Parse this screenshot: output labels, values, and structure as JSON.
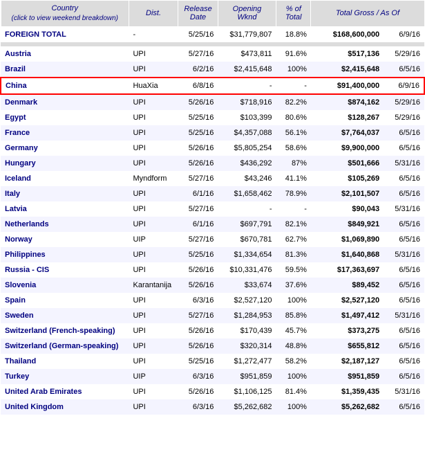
{
  "headers": {
    "country": "Country",
    "country_sub": "(click to view weekend breakdown)",
    "dist": "Dist.",
    "release_date": "Release Date",
    "opening_wknd": "Opening Wknd",
    "pct_total": "% of Total",
    "total_gross": "Total Gross",
    "slash": " / ",
    "as_of": "As Of"
  },
  "foreign_total": {
    "country": "FOREIGN TOTAL",
    "dist": "-",
    "date": "5/25/16",
    "opening": "$31,779,807",
    "pct": "18.8%",
    "gross": "$168,600,000",
    "asof": "6/9/16"
  },
  "rows": [
    {
      "country": "Austria",
      "dist": "UPI",
      "date": "5/27/16",
      "opening": "$473,811",
      "pct": "91.6%",
      "gross": "$517,136",
      "asof": "5/29/16",
      "highlight": false
    },
    {
      "country": "Brazil",
      "dist": "UPI",
      "date": "6/2/16",
      "opening": "$2,415,648",
      "pct": "100%",
      "gross": "$2,415,648",
      "asof": "6/5/16",
      "highlight": false
    },
    {
      "country": "China",
      "dist": "HuaXia",
      "date": "6/8/16",
      "opening": "-",
      "pct": "-",
      "gross": "$91,400,000",
      "asof": "6/9/16",
      "highlight": true
    },
    {
      "country": "Denmark",
      "dist": "UPI",
      "date": "5/26/16",
      "opening": "$718,916",
      "pct": "82.2%",
      "gross": "$874,162",
      "asof": "5/29/16",
      "highlight": false
    },
    {
      "country": "Egypt",
      "dist": "UPI",
      "date": "5/25/16",
      "opening": "$103,399",
      "pct": "80.6%",
      "gross": "$128,267",
      "asof": "5/29/16",
      "highlight": false
    },
    {
      "country": "France",
      "dist": "UPI",
      "date": "5/25/16",
      "opening": "$4,357,088",
      "pct": "56.1%",
      "gross": "$7,764,037",
      "asof": "6/5/16",
      "highlight": false
    },
    {
      "country": "Germany",
      "dist": "UPI",
      "date": "5/26/16",
      "opening": "$5,805,254",
      "pct": "58.6%",
      "gross": "$9,900,000",
      "asof": "6/5/16",
      "highlight": false
    },
    {
      "country": "Hungary",
      "dist": "UPI",
      "date": "5/26/16",
      "opening": "$436,292",
      "pct": "87%",
      "gross": "$501,666",
      "asof": "5/31/16",
      "highlight": false
    },
    {
      "country": "Iceland",
      "dist": "Myndform",
      "date": "5/27/16",
      "opening": "$43,246",
      "pct": "41.1%",
      "gross": "$105,269",
      "asof": "6/5/16",
      "highlight": false
    },
    {
      "country": "Italy",
      "dist": "UPI",
      "date": "6/1/16",
      "opening": "$1,658,462",
      "pct": "78.9%",
      "gross": "$2,101,507",
      "asof": "6/5/16",
      "highlight": false
    },
    {
      "country": "Latvia",
      "dist": "UPI",
      "date": "5/27/16",
      "opening": "-",
      "pct": "-",
      "gross": "$90,043",
      "asof": "5/31/16",
      "highlight": false
    },
    {
      "country": "Netherlands",
      "dist": "UPI",
      "date": "6/1/16",
      "opening": "$697,791",
      "pct": "82.1%",
      "gross": "$849,921",
      "asof": "6/5/16",
      "highlight": false
    },
    {
      "country": "Norway",
      "dist": "UIP",
      "date": "5/27/16",
      "opening": "$670,781",
      "pct": "62.7%",
      "gross": "$1,069,890",
      "asof": "6/5/16",
      "highlight": false
    },
    {
      "country": "Philippines",
      "dist": "UPI",
      "date": "5/25/16",
      "opening": "$1,334,654",
      "pct": "81.3%",
      "gross": "$1,640,868",
      "asof": "5/31/16",
      "highlight": false
    },
    {
      "country": "Russia - CIS",
      "dist": "UPI",
      "date": "5/26/16",
      "opening": "$10,331,476",
      "pct": "59.5%",
      "gross": "$17,363,697",
      "asof": "6/5/16",
      "highlight": false
    },
    {
      "country": "Slovenia",
      "dist": "Karantanija",
      "date": "5/26/16",
      "opening": "$33,674",
      "pct": "37.6%",
      "gross": "$89,452",
      "asof": "6/5/16",
      "highlight": false
    },
    {
      "country": "Spain",
      "dist": "UPI",
      "date": "6/3/16",
      "opening": "$2,527,120",
      "pct": "100%",
      "gross": "$2,527,120",
      "asof": "6/5/16",
      "highlight": false
    },
    {
      "country": "Sweden",
      "dist": "UPI",
      "date": "5/27/16",
      "opening": "$1,284,953",
      "pct": "85.8%",
      "gross": "$1,497,412",
      "asof": "5/31/16",
      "highlight": false
    },
    {
      "country": "Switzerland (French-speaking)",
      "dist": "UPI",
      "date": "5/26/16",
      "opening": "$170,439",
      "pct": "45.7%",
      "gross": "$373,275",
      "asof": "6/5/16",
      "highlight": false
    },
    {
      "country": "Switzerland (German-speaking)",
      "dist": "UPI",
      "date": "5/26/16",
      "opening": "$320,314",
      "pct": "48.8%",
      "gross": "$655,812",
      "asof": "6/5/16",
      "highlight": false
    },
    {
      "country": "Thailand",
      "dist": "UPI",
      "date": "5/25/16",
      "opening": "$1,272,477",
      "pct": "58.2%",
      "gross": "$2,187,127",
      "asof": "6/5/16",
      "highlight": false
    },
    {
      "country": "Turkey",
      "dist": "UIP",
      "date": "6/3/16",
      "opening": "$951,859",
      "pct": "100%",
      "gross": "$951,859",
      "asof": "6/5/16",
      "highlight": false
    },
    {
      "country": "United Arab Emirates",
      "dist": "UPI",
      "date": "5/26/16",
      "opening": "$1,106,125",
      "pct": "81.4%",
      "gross": "$1,359,435",
      "asof": "5/31/16",
      "highlight": false
    },
    {
      "country": "United Kingdom",
      "dist": "UPI",
      "date": "6/3/16",
      "opening": "$5,262,682",
      "pct": "100%",
      "gross": "$5,262,682",
      "asof": "6/5/16",
      "highlight": false
    }
  ],
  "col_widths": [
    "170px",
    "66px",
    "55px",
    "80px",
    "48px",
    "100px",
    "56px"
  ]
}
